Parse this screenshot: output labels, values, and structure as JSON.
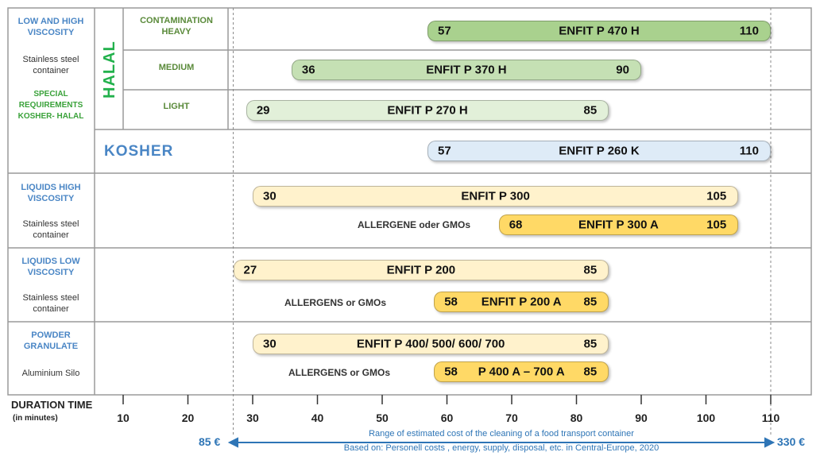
{
  "rows": {
    "viscosity_title": "LOW AND HIGH VISCOSITY",
    "steel1": "Stainless steel container",
    "special": "SPECIAL REQUIREMENTS KOSHER- HALAL",
    "halal": "HALAL",
    "contamination_heavy": "CONTAMINATION HEAVY",
    "medium": "MEDIUM",
    "light": "LIGHT",
    "kosher": "KOSHER",
    "liquids_high": "LIQUIDS HIGH VISCOSITY",
    "steel2": "Stainless steel container",
    "allergene_gmo": "ALLERGENE oder GMOs",
    "liquids_low": "LIQUIDS LOW VISCOSITY",
    "steel3": "Stainless steel container",
    "allergens_gmo1": "ALLERGENS or GMOs",
    "powder": "POWDER GRANULATE",
    "alu": "Aluminium Silo",
    "allergens_gmo2": "ALLERGENS or GMOs"
  },
  "chart_data": {
    "type": "bar",
    "orientation": "horizontal-range",
    "xlabel": "DURATION TIME",
    "xlabel_unit": "(in minutes)",
    "xlim": [
      10,
      110
    ],
    "xticks": [
      "10",
      "20",
      "30",
      "40",
      "50",
      "60",
      "70",
      "80",
      "90",
      "100",
      "110"
    ],
    "bars": [
      {
        "name": "ENFIT P 470 H",
        "min": 57,
        "max": 110,
        "min_label": "57",
        "max_label": "110",
        "color": "#a9d18e"
      },
      {
        "name": "ENFIT P 370 H",
        "min": 36,
        "max": 90,
        "min_label": "36",
        "max_label": "90",
        "color": "#c5e0b4"
      },
      {
        "name": "ENFIT P 270 H",
        "min": 29,
        "max": 85,
        "min_label": "29",
        "max_label": "85",
        "color": "#e2f0d9"
      },
      {
        "name": "ENFIT P 260 K",
        "min": 57,
        "max": 110,
        "min_label": "57",
        "max_label": "110",
        "color": "#deebf7"
      },
      {
        "name": "ENFIT P 300",
        "min": 30,
        "max": 105,
        "min_label": "30",
        "max_label": "105",
        "color": "#fff2cc"
      },
      {
        "name": "ENFIT P 300 A",
        "min": 68,
        "max": 105,
        "min_label": "68",
        "max_label": "105",
        "color": "#ffd966"
      },
      {
        "name": "ENFIT P 200",
        "min": 27,
        "max": 85,
        "min_label": "27",
        "max_label": "85",
        "color": "#fff2cc"
      },
      {
        "name": "ENFIT P 200 A",
        "min": 58,
        "max": 85,
        "min_label": "58",
        "max_label": "85",
        "color": "#ffd966"
      },
      {
        "name": "ENFIT P 400/ 500/ 600/ 700",
        "min": 30,
        "max": 85,
        "min_label": "30",
        "max_label": "85",
        "color": "#fff2cc"
      },
      {
        "name": "P 400 A – 700 A",
        "min": 58,
        "max": 85,
        "min_label": "58",
        "max_label": "85",
        "color": "#ffd966"
      }
    ],
    "reference_lines": [
      27,
      110
    ],
    "cost_range": {
      "from": "85 €",
      "to": "330 €",
      "line1": "Range of estimated cost of the cleaning of a food transport container",
      "line2": "Based on: Personell costs , energy, supply, disposal, etc. in Central-Europe, 2020"
    }
  }
}
